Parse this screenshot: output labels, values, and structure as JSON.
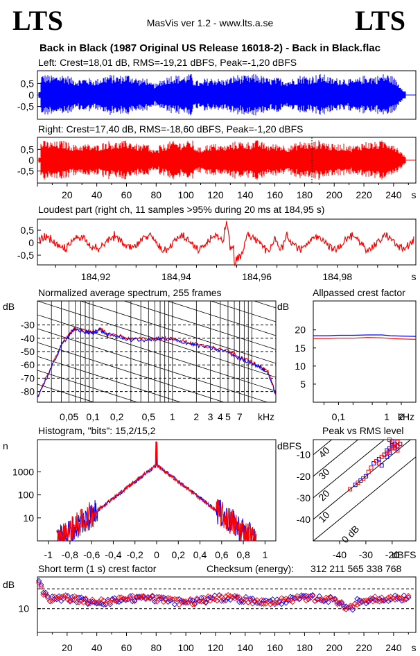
{
  "header": {
    "logo_left": "LTS",
    "logo_right": "LTS",
    "version": "MasVis ver 1.2 - www.lts.a.se",
    "title": "Back in Black (1987 Original US Release 16018-2) - Back in Black.flac"
  },
  "colors": {
    "left": "#0000ff",
    "right": "#ff0000",
    "axis": "#000000"
  },
  "chart_data": [
    {
      "type": "area",
      "id": "left-waveform",
      "title": "Left: Crest=18,01 dB, RMS=-19,21 dBFS, Peak=-1,20 dBFS",
      "y_ticks": [
        "0,5",
        "0",
        "-0,5"
      ],
      "ylim": [
        -1,
        1
      ],
      "xlim": [
        0,
        255
      ],
      "crest_db": 18.01,
      "rms_dbfs": -19.21,
      "peak_dbfs": -1.2
    },
    {
      "type": "area",
      "id": "right-waveform",
      "title": "Right: Crest=17,40 dB, RMS=-18,60 dBFS, Peak=-1,20 dBFS",
      "y_ticks": [
        "0,5",
        "0",
        "-0,5"
      ],
      "x_ticks": [
        "20",
        "40",
        "60",
        "80",
        "100",
        "120",
        "140",
        "160",
        "180",
        "200",
        "220",
        "240",
        "s"
      ],
      "ylim": [
        -1,
        1
      ],
      "xlim": [
        0,
        255
      ],
      "marker_s": 184.95,
      "crest_db": 17.4,
      "rms_dbfs": -18.6,
      "peak_dbfs": -1.2
    },
    {
      "type": "line",
      "id": "loudest-part",
      "title": "Loudest part (right ch, 11 samples >95% during 20 ms at 184,95 s)",
      "y_ticks": [
        "0,5",
        "0",
        "-0,5"
      ],
      "x_ticks": [
        "184,92",
        "184,94",
        "184,96",
        "184,98",
        "s"
      ],
      "xlim": [
        184.9055,
        184.9995
      ],
      "ylim": [
        -1,
        1
      ]
    },
    {
      "type": "line",
      "id": "spectrum",
      "title": "Normalized average spectrum, 255 frames",
      "ylabel": "dB",
      "y_ticks": [
        "-30",
        "-40",
        "-50",
        "-60",
        "-70",
        "-80"
      ],
      "x_ticks": [
        "0,05",
        "0,1",
        "0,2",
        "0,5",
        "1",
        "2",
        "3",
        "4",
        "5",
        "7",
        "kHz"
      ],
      "ylim": [
        -88,
        -12
      ],
      "xlim_khz": [
        0.02,
        20
      ],
      "series": [
        {
          "x": [
            0.02,
            0.03,
            0.04,
            0.05,
            0.06,
            0.08,
            0.1,
            0.12,
            0.15,
            0.2,
            0.3,
            0.5,
            0.7,
            1,
            1.5,
            2,
            3,
            5,
            7,
            10,
            13,
            16,
            20
          ],
          "y": [
            -84,
            -62,
            -45,
            -37,
            -33,
            -35,
            -36,
            -33,
            -37,
            -38,
            -41,
            -41,
            -40,
            -41,
            -43,
            -45,
            -47,
            -50,
            -55,
            -58,
            -62,
            -66,
            -82
          ]
        }
      ]
    },
    {
      "type": "line",
      "id": "allpassed-crest",
      "title": "Allpassed crest factor",
      "ylabel": "dB",
      "y_ticks": [
        "20",
        "15",
        "10",
        "5"
      ],
      "x_ticks": [
        "0,1",
        "1",
        "2",
        "kHz"
      ],
      "ylim": [
        0,
        28
      ],
      "xlim_khz": [
        0.03,
        4
      ],
      "series": [
        {
          "x": [
            0.03,
            0.06,
            0.1,
            0.2,
            0.4,
            0.8,
            1.2,
            2,
            4
          ],
          "y": [
            18.4,
            18.4,
            18.5,
            18.5,
            18.6,
            18.6,
            18.4,
            18.3,
            18.2
          ]
        },
        {
          "x": [
            0.03,
            0.06,
            0.1,
            0.2,
            0.4,
            0.8,
            1.2,
            2,
            4
          ],
          "y": [
            17.6,
            17.6,
            17.7,
            17.7,
            17.9,
            17.8,
            17.6,
            17.5,
            17.4
          ]
        }
      ]
    },
    {
      "type": "line",
      "id": "histogram",
      "title": "Histogram, \"bits\": 15,2/15,2",
      "ylabel": "n",
      "y_ticks": [
        "1000",
        "100",
        "10"
      ],
      "x_ticks": [
        "-1",
        "-0,8",
        "-0,6",
        "-0,4",
        "-0,2",
        "0",
        "0,2",
        "0,4",
        "0,6",
        "0,8",
        "1"
      ],
      "xlim": [
        -1.1,
        1.1
      ],
      "ylim_log10": [
        0.0,
        4.4
      ],
      "peak_log10": 4.3,
      "edge_log10": 3.3
    },
    {
      "type": "scatter",
      "id": "peak-vs-rms",
      "title": "Peak vs RMS level",
      "ylabel": "dBFS",
      "xlabel": "dBFS",
      "x_ticks": [
        "-40",
        "-30",
        "-20"
      ],
      "y_ticks": [
        "-10",
        "-20",
        "-30",
        "-40"
      ],
      "diagonal_labels": [
        "40",
        "30",
        "20",
        "10",
        "0 dB"
      ],
      "xlim": [
        -50,
        -11
      ],
      "ylim": [
        -50,
        -3
      ],
      "series": [
        {
          "x": [
            -27,
            -25,
            -23,
            -22,
            -21,
            -20,
            -20,
            -19,
            -18,
            -18,
            -17,
            -21,
            -24,
            -30,
            -32,
            -34,
            -20,
            -19,
            -22
          ],
          "y": [
            -14,
            -12,
            -10,
            -8,
            -7,
            -6,
            -5,
            -5,
            -4,
            -6,
            -5,
            -9,
            -15,
            -20,
            -22,
            -24,
            -4,
            -7,
            -11
          ]
        },
        {
          "x": [
            -28,
            -26,
            -24,
            -22,
            -21,
            -20,
            -19,
            -18,
            -17,
            -19,
            -20,
            -23,
            -25,
            -29,
            -31,
            -33,
            -36,
            -21,
            -18
          ],
          "y": [
            -16,
            -13,
            -11,
            -9,
            -8,
            -6,
            -5,
            -4,
            -5,
            -6,
            -7,
            -10,
            -14,
            -18,
            -21,
            -23,
            -26,
            -3,
            -8
          ]
        }
      ]
    },
    {
      "type": "scatter",
      "id": "short-term-crest",
      "title": "Short term (1 s) crest factor",
      "checksum_label": "Checksum (energy):",
      "checksum_value": "312 211 565 338 768",
      "ylabel": "dB",
      "y_ticks": [
        "10"
      ],
      "x_ticks": [
        "20",
        "40",
        "60",
        "80",
        "100",
        "120",
        "140",
        "160",
        "180",
        "200",
        "220",
        "240",
        "s"
      ],
      "xlim": [
        0,
        255
      ],
      "ylim": [
        4,
        18
      ],
      "dashed_levels": [
        10,
        15
      ],
      "start_values": [
        17,
        16,
        14,
        14
      ]
    }
  ]
}
